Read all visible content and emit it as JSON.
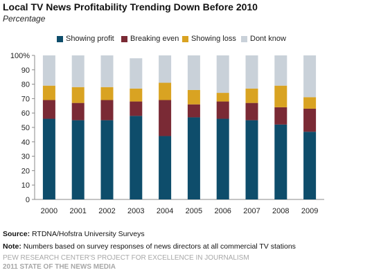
{
  "title": "Local TV News Profitability Trending Down Before 2010",
  "subtitle": "Percentage",
  "source_label": "Source:",
  "source_text": "RTDNA/Hofstra University Surveys",
  "note_label": "Note:",
  "note_text": "Numbers based on survey responses of news directors at all commercial TV stations",
  "org_line1": "PEW RESEARCH CENTER'S PROJECT FOR EXCELLENCE IN JOURNALISM",
  "org_line2": "2011 STATE OF THE NEWS MEDIA",
  "chart_data": {
    "type": "bar",
    "stacked": true,
    "categories": [
      "2000",
      "2001",
      "2002",
      "2003",
      "2004",
      "2005",
      "2006",
      "2007",
      "2008",
      "2009"
    ],
    "series": [
      {
        "name": "Showing profit",
        "color": "#0e4d6b",
        "values": [
          56,
          55,
          55,
          58,
          44,
          57,
          56,
          55,
          52,
          47
        ]
      },
      {
        "name": "Breaking even",
        "color": "#7a2a35",
        "values": [
          13,
          12,
          14,
          10,
          25,
          9,
          12,
          12,
          12,
          16
        ]
      },
      {
        "name": "Showing loss",
        "color": "#d9a322",
        "values": [
          10,
          11,
          9,
          9,
          12,
          10,
          6,
          10,
          15,
          8
        ]
      },
      {
        "name": "Dont know",
        "color": "#c9d1d9",
        "values": [
          21,
          22,
          22,
          21,
          19,
          24,
          26,
          23,
          21,
          29
        ]
      }
    ],
    "y_ticks": [
      "0",
      "10",
      "20",
      "30",
      "40",
      "50",
      "60",
      "70",
      "80",
      "90",
      "100%"
    ],
    "ylim": [
      0,
      100
    ],
    "legend_position": "top",
    "grid": false
  }
}
